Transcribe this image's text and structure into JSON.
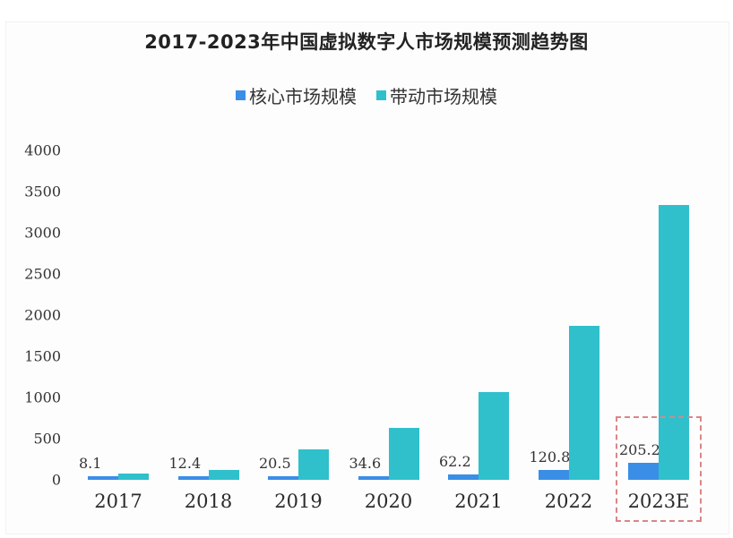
{
  "chart_data": {
    "type": "bar",
    "title": "2017-2023年中国虚拟数字人市场规模预测趋势图",
    "xlabel": "",
    "ylabel": "",
    "categories": [
      "2017",
      "2018",
      "2019",
      "2020",
      "2021",
      "2022",
      "2023E"
    ],
    "series": [
      {
        "name": "核心市场规模",
        "color": "#3a8ee6",
        "values": [
          8.1,
          12.4,
          20.5,
          34.6,
          62.2,
          120.8,
          205.2
        ],
        "labels": [
          "8.1",
          "12.4",
          "20.5",
          "34.6",
          "62.2",
          "120.8",
          "205.2"
        ]
      },
      {
        "name": "带动市场规模",
        "color": "#2fc0cc",
        "values": [
          75,
          120,
          370,
          630,
          1065,
          1870,
          3340
        ]
      }
    ],
    "yticks": [
      "4000",
      "3500",
      "3000",
      "2500",
      "2000",
      "1500",
      "1000",
      "500",
      "0"
    ],
    "ylim": [
      0,
      4000
    ],
    "grid": false,
    "legend_position": "top",
    "annotations": [
      {
        "type": "dashed-box",
        "target": "2023E",
        "color": "#d98787"
      }
    ]
  },
  "legend": {
    "core": {
      "label": "核心市场规模",
      "color": "#3a8ee6"
    },
    "driven": {
      "label": "带动市场规模",
      "color": "#2fc0cc"
    }
  }
}
